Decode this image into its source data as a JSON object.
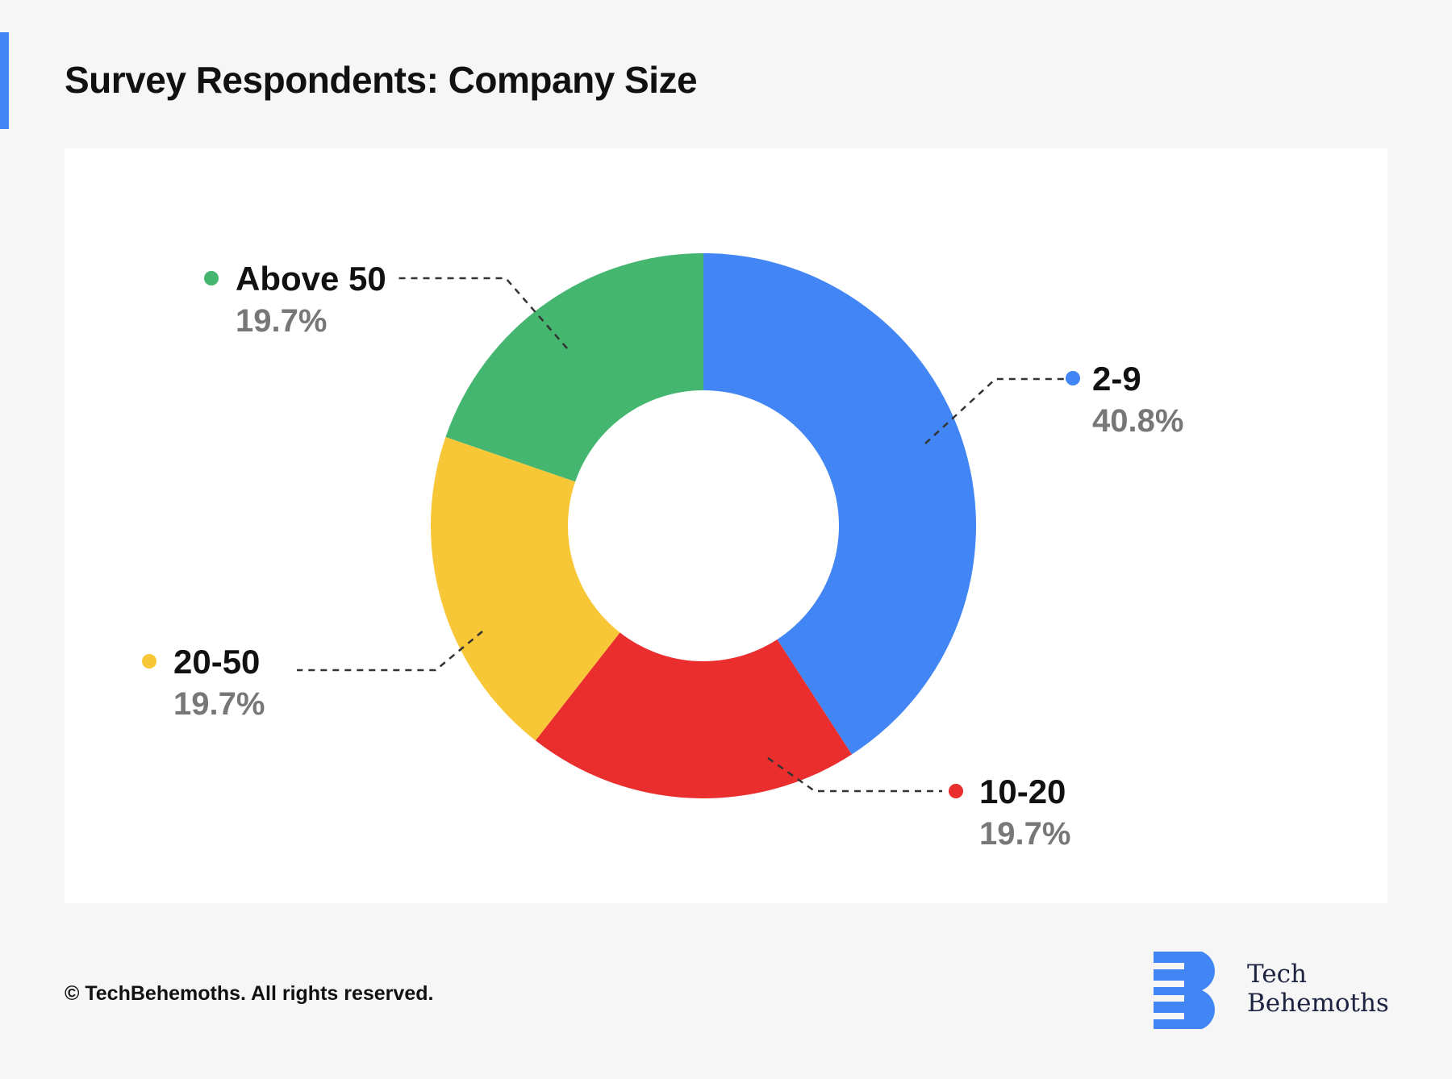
{
  "title": "Survey Respondents: Company Size",
  "copyright": "© TechBehemoths. All rights reserved.",
  "logo": {
    "line1": "Tech",
    "line2": "Behemoths",
    "color": "#4285f4"
  },
  "chart_data": {
    "type": "pie",
    "title": "Survey Respondents: Company Size",
    "donut": true,
    "slices": [
      {
        "label": "2-9",
        "value": 40.8,
        "display": "40.8%",
        "color": "#4285f4"
      },
      {
        "label": "10-20",
        "value": 19.7,
        "display": "19.7%",
        "color": "#ea2e2e"
      },
      {
        "label": "20-50",
        "value": 19.7,
        "display": "19.7%",
        "color": "#f8c737"
      },
      {
        "label": "Above 50",
        "value": 19.7,
        "display": "19.7%",
        "color": "#44b66f"
      }
    ]
  }
}
